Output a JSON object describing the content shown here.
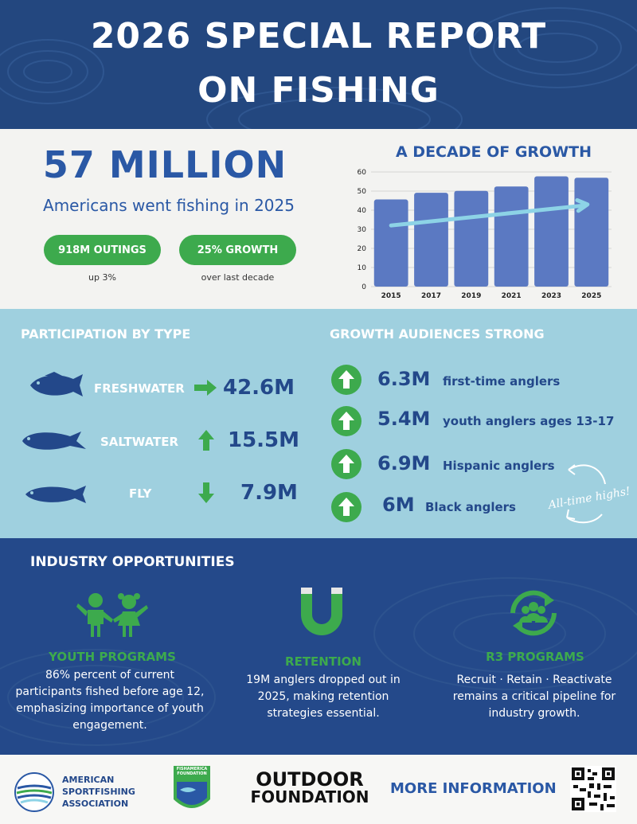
{
  "header": {
    "line1": "2026 SPECIAL REPORT",
    "line2": "ON FISHING"
  },
  "hero": {
    "headline": "57 MILLION",
    "subhead": "Americans went fishing in 2025",
    "pills": [
      {
        "label": "918M OUTINGS",
        "caption": "up 3%"
      },
      {
        "label": "25% GROWTH",
        "caption": "over last decade"
      }
    ]
  },
  "chart_data": {
    "type": "bar",
    "title": "A DECADE OF GROWTH",
    "categories": [
      "2015",
      "2017",
      "2019",
      "2021",
      "2023",
      "2025"
    ],
    "values": [
      45.6,
      49.1,
      50.1,
      52.4,
      57.7,
      57.0
    ],
    "yticks": [
      "0",
      "10",
      "20",
      "30",
      "40",
      "50",
      "60"
    ],
    "ylim": [
      0,
      60
    ],
    "grid": true,
    "legend": "none",
    "trend_arrow": {
      "from": 32,
      "to": 43
    },
    "colors": {
      "bar": "#5b79c2",
      "arrow": "#8dd3e6"
    }
  },
  "participation": {
    "title": "PARTICIPATION BY TYPE",
    "rows": [
      {
        "label": "FRESHWATER",
        "value": "42.6M",
        "arrow": "right"
      },
      {
        "label": "SALTWATER",
        "value": "15.5M",
        "arrow": "up"
      },
      {
        "label": "FLY",
        "value": "7.9M",
        "arrow": "down"
      }
    ]
  },
  "growth": {
    "title": "GROWTH AUDIENCES STRONG",
    "rows": [
      {
        "value": "6.3M",
        "label": "first-time anglers"
      },
      {
        "value": "5.4M",
        "label": "youth anglers ages 13-17"
      },
      {
        "value": "6.9M",
        "label": "Hispanic anglers"
      },
      {
        "value": "6M",
        "label": "Black anglers"
      }
    ],
    "note": "All-time highs!"
  },
  "industry": {
    "title": "INDUSTRY OPPORTUNITIES",
    "cols": [
      {
        "title": "YOUTH PROGRAMS",
        "desc": "86% percent of current participants fished before age 12, emphasizing importance of youth engagement.",
        "icon": "kids-icon"
      },
      {
        "title": "RETENTION",
        "desc": "19M anglers dropped out in 2025, making retention strategies essential.",
        "icon": "magnet-icon"
      },
      {
        "title": "R3 PROGRAMS",
        "desc": "Recruit · Retain · Reactivate remains a critical pipeline for industry growth.",
        "icon": "people-cycle-icon"
      }
    ]
  },
  "footer": {
    "asa": [
      "AMERICAN",
      "SPORTFISHING",
      "ASSOCIATION"
    ],
    "fishamerica": [
      "FISHAMERICA",
      "FOUNDATION"
    ],
    "outdoor": [
      "OUTDOOR",
      "FOUNDATION"
    ],
    "more": "MORE INFORMATION"
  },
  "colors": {
    "navy": "#23477f",
    "green": "#3daa4d",
    "lightblue": "#9fd0df",
    "blue": "#2a58a5"
  }
}
